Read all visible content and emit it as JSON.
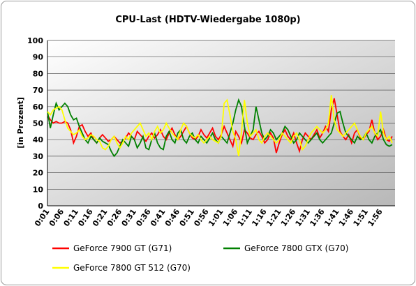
{
  "chart_data": {
    "type": "line",
    "title": "CPU-Last (HDTV-Wiedergabe 1080p)",
    "y_label": "[in Prozent]",
    "categories": [
      "0:01",
      null,
      null,
      null,
      null,
      "0:06",
      null,
      null,
      null,
      null,
      "0:11",
      null,
      null,
      null,
      null,
      "0:16",
      null,
      null,
      null,
      null,
      "0:21",
      null,
      null,
      null,
      null,
      "0:26",
      null,
      null,
      null,
      null,
      "0:31",
      null,
      null,
      null,
      null,
      "0:36",
      null,
      null,
      null,
      null,
      "0:41",
      null,
      null,
      null,
      null,
      "0:46",
      null,
      null,
      null,
      null,
      "0:51",
      null,
      null,
      null,
      null,
      "0:56",
      null,
      null,
      null,
      null,
      "1:01",
      null,
      null,
      null,
      null,
      "1:06",
      null,
      null,
      null,
      null,
      "1:11",
      null,
      null,
      null,
      null,
      "1:16",
      null,
      null,
      null,
      null,
      "1:21",
      null,
      null,
      null,
      null,
      "1:26",
      null,
      null,
      null,
      null,
      "1:31",
      null,
      null,
      null,
      null,
      "1:36",
      null,
      null,
      null,
      null,
      "1:41",
      null,
      null,
      null,
      null,
      "1:46",
      null,
      null,
      null,
      null,
      "1:51",
      null,
      null,
      null,
      null,
      "1:56",
      null,
      null,
      null,
      null
    ],
    "series": [
      {
        "name": "GeForce 7900 GT (G71)",
        "color": "#ff0000",
        "values": [
          55,
          52,
          50,
          51,
          50,
          50,
          51,
          50,
          46,
          38,
          42,
          48,
          49,
          45,
          42,
          44,
          40,
          38,
          41,
          43,
          41,
          39,
          40,
          42,
          40,
          38,
          39,
          41,
          44,
          42,
          40,
          45,
          43,
          41,
          39,
          42,
          44,
          41,
          43,
          46,
          42,
          40,
          44,
          47,
          43,
          40,
          42,
          45,
          48,
          44,
          41,
          40,
          42,
          46,
          43,
          41,
          44,
          47,
          42,
          40,
          43,
          48,
          44,
          40,
          36,
          45,
          42,
          38,
          46,
          44,
          41,
          40,
          43,
          45,
          42,
          38,
          40,
          44,
          41,
          32,
          38,
          43,
          46,
          42,
          40,
          44,
          38,
          33,
          40,
          44,
          42,
          40,
          43,
          46,
          41,
          44,
          48,
          45,
          58,
          65,
          55,
          45,
          42,
          40,
          43,
          38,
          44,
          46,
          41,
          40,
          43,
          45,
          52,
          44,
          40,
          42,
          46,
          40,
          39,
          42
        ]
      },
      {
        "name": "GeForce 7800 GTX (G70)",
        "color": "#008000",
        "values": [
          57,
          47,
          55,
          62,
          58,
          60,
          62,
          60,
          55,
          52,
          53,
          48,
          44,
          40,
          38,
          42,
          40,
          38,
          41,
          39,
          38,
          37,
          33,
          30,
          32,
          36,
          40,
          38,
          36,
          42,
          40,
          35,
          38,
          42,
          35,
          34,
          40,
          44,
          38,
          35,
          34,
          42,
          45,
          40,
          38,
          44,
          46,
          40,
          38,
          42,
          44,
          40,
          38,
          42,
          40,
          38,
          41,
          44,
          40,
          38,
          42,
          40,
          38,
          44,
          50,
          58,
          64,
          60,
          48,
          38,
          42,
          46,
          60,
          52,
          44,
          40,
          42,
          46,
          44,
          40,
          42,
          44,
          48,
          46,
          42,
          38,
          40,
          44,
          42,
          40,
          38,
          40,
          42,
          44,
          40,
          38,
          40,
          42,
          44,
          50,
          56,
          57,
          50,
          44,
          42,
          40,
          38,
          42,
          40,
          41,
          44,
          40,
          38,
          42,
          44,
          46,
          40,
          37,
          36,
          37
        ]
      },
      {
        "name": "GeForce 7800 GT 512 (G70)",
        "color": "#ffff00",
        "values": [
          57,
          55,
          58,
          59,
          60,
          58,
          52,
          47,
          45,
          43,
          44,
          46,
          42,
          40,
          41,
          43,
          42,
          40,
          39,
          35,
          34,
          36,
          40,
          42,
          38,
          35,
          38,
          42,
          40,
          44,
          46,
          48,
          50,
          46,
          42,
          44,
          40,
          45,
          48,
          44,
          46,
          50,
          47,
          44,
          42,
          40,
          46,
          50,
          48,
          44,
          42,
          41,
          43,
          40,
          38,
          40,
          42,
          40,
          39,
          38,
          42,
          62,
          64,
          55,
          45,
          40,
          30,
          45,
          64,
          50,
          42,
          44,
          46,
          40,
          38,
          42,
          44,
          42,
          40,
          38,
          40,
          44,
          42,
          40,
          38,
          42,
          44,
          40,
          34,
          36,
          40,
          44,
          46,
          48,
          46,
          44,
          46,
          50,
          67,
          52,
          46,
          44,
          42,
          44,
          46,
          48,
          50,
          46,
          42,
          40,
          44,
          46,
          48,
          44,
          42,
          57,
          44,
          40,
          42,
          38
        ]
      }
    ],
    "ylim": [
      0,
      100
    ],
    "yticks": [
      0,
      10,
      20,
      30,
      40,
      50,
      60,
      70,
      80,
      90,
      100
    ],
    "grid": true,
    "legend": "bottom"
  }
}
